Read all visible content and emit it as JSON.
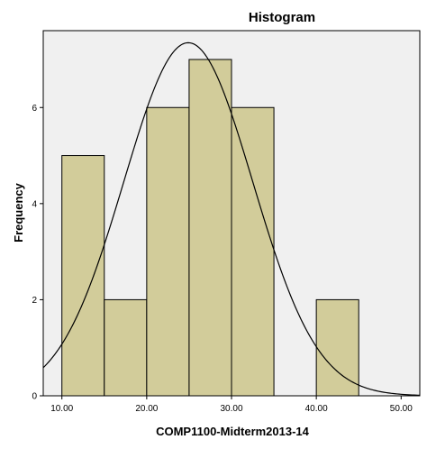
{
  "chart_data": {
    "type": "bar",
    "title": "Histogram",
    "xlabel": "COMP1100-Midterm2013-14",
    "ylabel": "Frequency",
    "bins": [
      {
        "start": 10,
        "end": 15,
        "count": 5
      },
      {
        "start": 15,
        "end": 20,
        "count": 2
      },
      {
        "start": 20,
        "end": 25,
        "count": 6
      },
      {
        "start": 25,
        "end": 30,
        "count": 7
      },
      {
        "start": 30,
        "end": 35,
        "count": 6
      },
      {
        "start": 40,
        "end": 45,
        "count": 2
      }
    ],
    "normal_curve": {
      "mean": 24.9,
      "std": 7.6,
      "n": 28,
      "bin_width": 5
    },
    "xlim": [
      7.8,
      52.2
    ],
    "ylim": [
      0,
      7.6
    ],
    "x_ticks": [
      10,
      20,
      30,
      40,
      50
    ],
    "x_tick_labels": [
      "10.00",
      "20.00",
      "30.00",
      "40.00",
      "50.00"
    ],
    "y_ticks": [
      0,
      2,
      4,
      6
    ],
    "y_tick_labels": [
      "0",
      "2",
      "4",
      "6"
    ],
    "bar_color": "#d2cc9a",
    "plot_background": "#f0f0f0",
    "grid": false
  }
}
